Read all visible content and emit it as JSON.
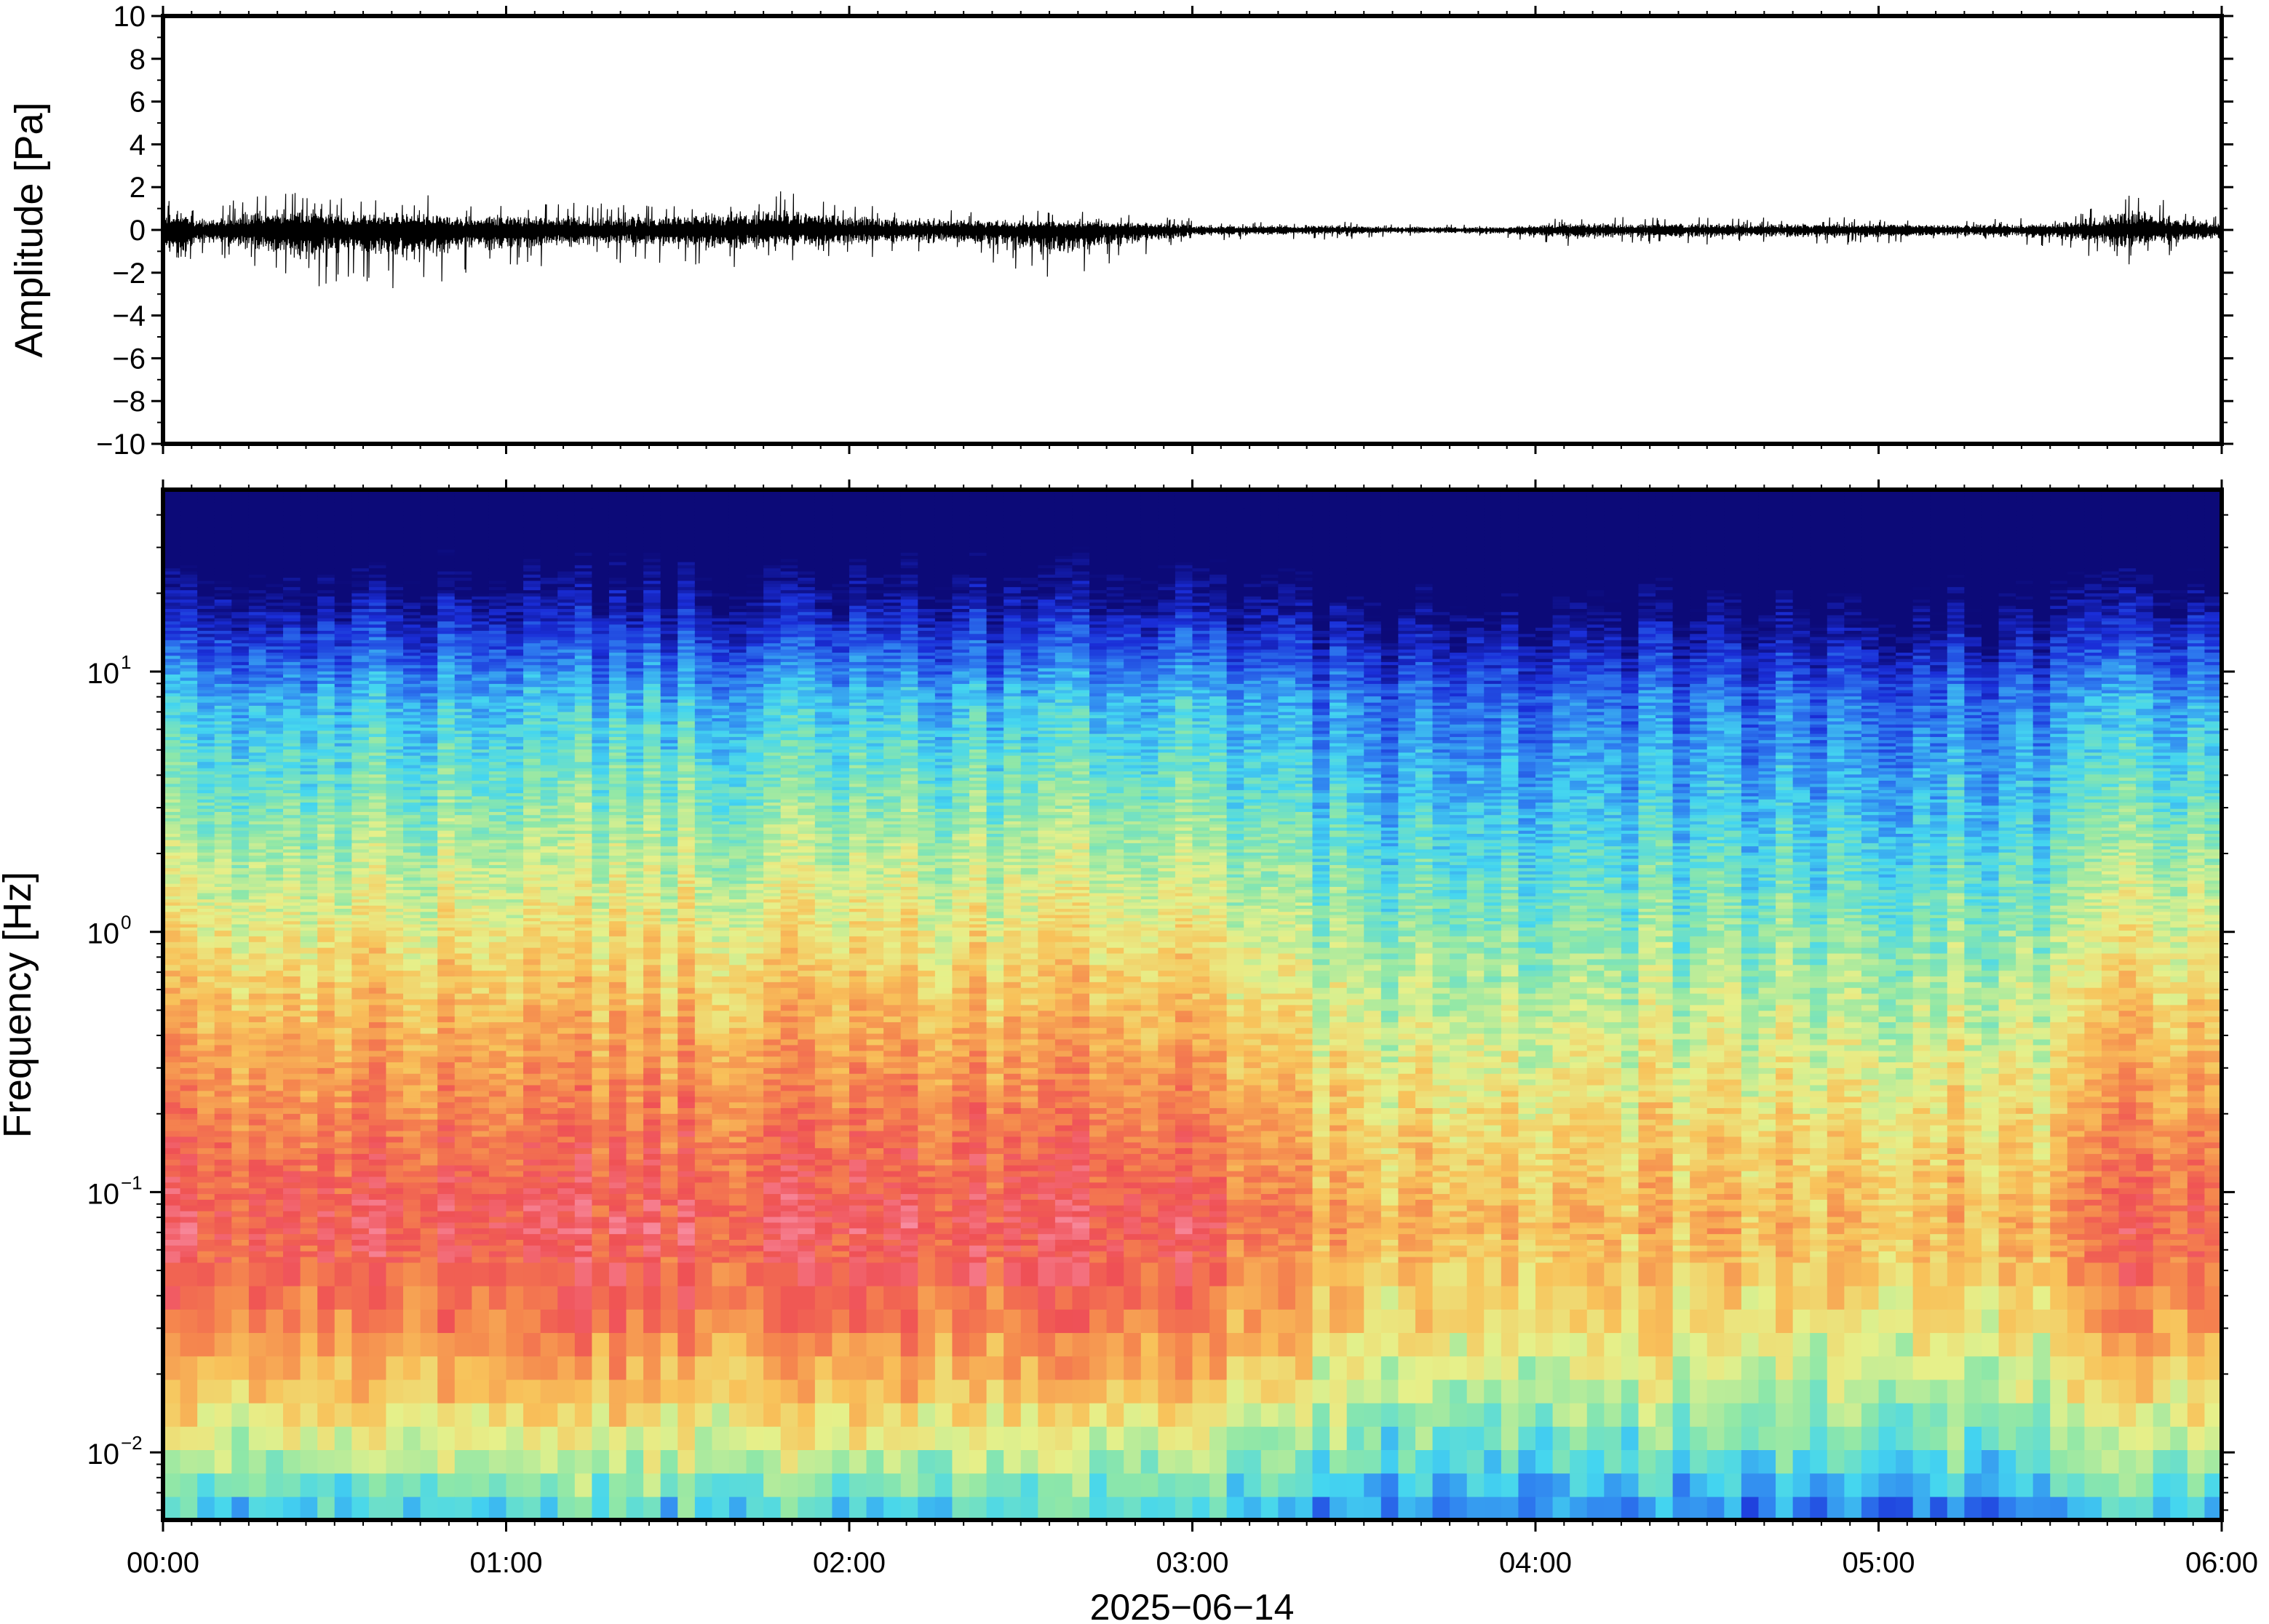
{
  "chart_data": [
    {
      "type": "line",
      "panel": "waveform",
      "ylabel": "Amplitude [Pa]",
      "ylim": [
        -10,
        10
      ],
      "yticks": [
        10,
        8,
        6,
        4,
        2,
        0,
        -2,
        -4,
        -6,
        -8,
        -10
      ],
      "ytick_labels": [
        "10",
        "8",
        "6",
        "4",
        "2",
        "0",
        "−2",
        "−4",
        "−6",
        "−8",
        "−10"
      ],
      "x_range_hours": [
        0,
        6
      ],
      "envelope": {
        "hours": [
          0.0,
          0.05,
          0.1,
          0.2,
          0.4,
          0.6,
          0.7,
          0.9,
          1.0,
          1.2,
          1.4,
          1.6,
          1.8,
          2.0,
          2.3,
          2.6,
          2.9,
          3.1,
          3.4,
          3.6,
          3.9,
          4.1,
          4.5,
          4.9,
          5.2,
          5.5,
          5.65,
          5.75,
          5.85,
          5.95,
          6.0
        ],
        "max": [
          1.2,
          2.0,
          1.0,
          1.4,
          2.1,
          1.6,
          1.8,
          1.3,
          1.4,
          1.3,
          1.2,
          1.7,
          2.0,
          1.3,
          1.0,
          0.9,
          0.7,
          0.4,
          0.5,
          0.3,
          0.3,
          0.6,
          0.6,
          0.6,
          0.5,
          0.6,
          1.2,
          2.1,
          1.3,
          0.8,
          0.6
        ],
        "min": [
          -1.4,
          -3.5,
          -1.2,
          -1.5,
          -2.8,
          -2.4,
          -3.0,
          -2.0,
          -1.8,
          -1.7,
          -1.5,
          -1.9,
          -1.6,
          -1.4,
          -1.2,
          -2.3,
          -1.0,
          -0.5,
          -0.5,
          -0.3,
          -0.4,
          -0.8,
          -0.7,
          -0.7,
          -0.6,
          -0.8,
          -1.4,
          -1.8,
          -1.3,
          -0.9,
          -0.8
        ]
      }
    },
    {
      "type": "heatmap",
      "panel": "spectrogram",
      "ylabel": "Frequency [Hz]",
      "yscale": "log",
      "ylim_hz": [
        0.0055,
        50
      ],
      "ytick_decades": [
        {
          "base": "10",
          "exponent": "1"
        },
        {
          "base": "10",
          "exponent": "0"
        },
        {
          "base": "10",
          "exponent": "−1"
        },
        {
          "base": "10",
          "exponent": "−2"
        }
      ],
      "colormap": "jet-like (dark blue low, red/pink high)",
      "description_of_values": "Broad maximum near 0.03–0.15 Hz (red/pink) during 00:00–03:00; weaker after 03:00 with blue dominating above ~1 Hz; energy rises again near 05:40–06:00.",
      "x_range_hours": [
        0,
        6
      ]
    }
  ],
  "x_axis": {
    "tick_labels": [
      "00:00",
      "01:00",
      "02:00",
      "03:00",
      "04:00",
      "05:00",
      "06:00"
    ],
    "tick_hours": [
      0,
      1,
      2,
      3,
      4,
      5,
      6
    ],
    "date_label": "2025−06−14"
  },
  "colors": {
    "waveform": "#000000",
    "colormap_stops": [
      "#0c0a78",
      "#1a2ed8",
      "#2f7ff0",
      "#44d6f0",
      "#8ee7a8",
      "#e6f08a",
      "#f8c25a",
      "#f5884e",
      "#ef5055",
      "#f88ca0"
    ]
  }
}
